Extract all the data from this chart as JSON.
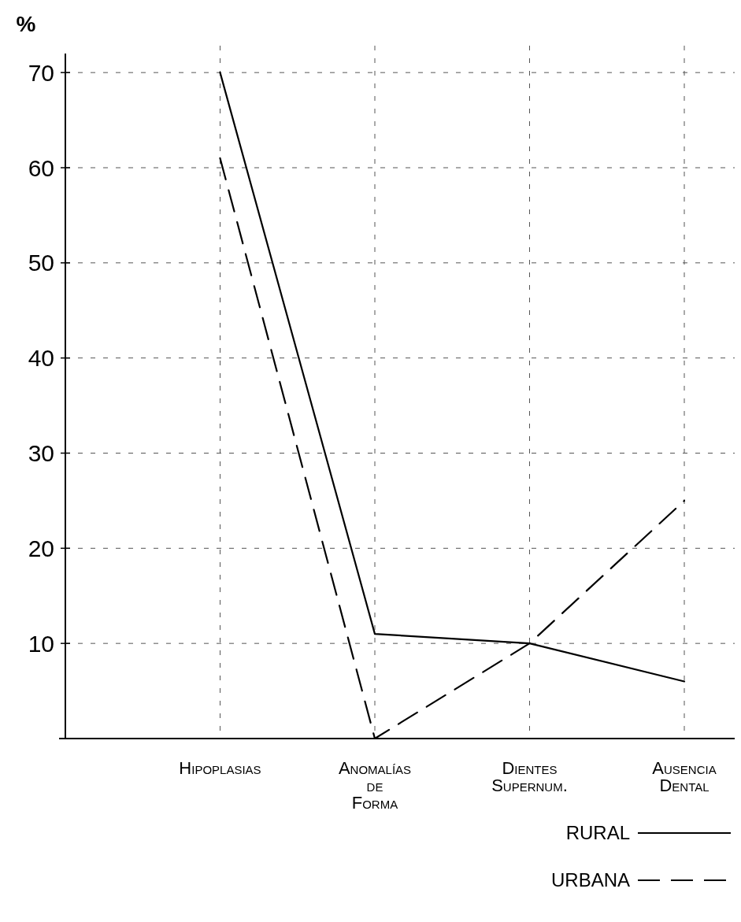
{
  "chart_data": {
    "type": "line",
    "ylabel": "%",
    "categories": [
      "Hipoplasias",
      "Anomalías\nde\nForma",
      "Dientes\nSupernum.",
      "Ausencia\nDental"
    ],
    "series": [
      {
        "name": "RURAL",
        "color": "#000000",
        "line_style": "solid",
        "values": [
          70,
          11,
          10,
          6
        ]
      },
      {
        "name": "URBANA",
        "color": "#000000",
        "line_style": "dashed",
        "values": [
          61,
          0,
          10,
          25
        ]
      }
    ],
    "ylim": [
      0,
      72
    ],
    "yticks": [
      10,
      20,
      30,
      40,
      50,
      60,
      70
    ],
    "grid": true,
    "legend": "bottom right",
    "marker": "none"
  }
}
